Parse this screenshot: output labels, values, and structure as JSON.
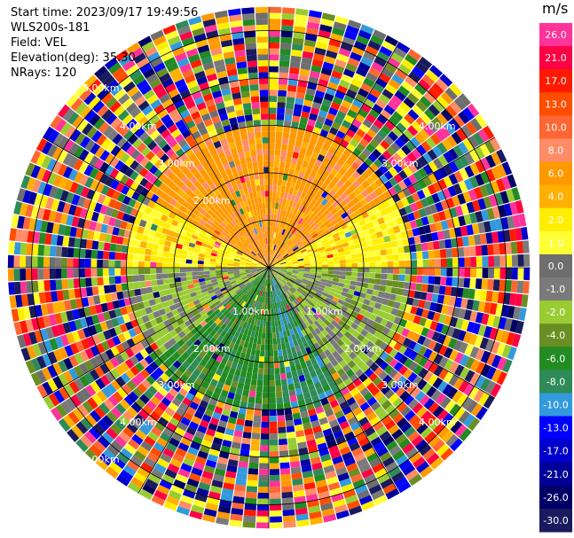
{
  "info": {
    "start_time": "Start time: 2023/09/17 19:49:56",
    "instrument": "WLS200s-181",
    "field": "Field: VEL",
    "elevation": "Elevation(deg): 35.30",
    "nrays": "NRays: 120"
  },
  "colorbar": {
    "unit": "m/s",
    "ticks": [
      "26.0",
      "21.0",
      "17.0",
      "13.0",
      "10.0",
      "8.0",
      "6.0",
      "4.0",
      "2.0",
      "1.0",
      "0.0",
      "-1.0",
      "-2.0",
      "-4.0",
      "-6.0",
      "-8.0",
      "-10.0",
      "-13.0",
      "-17.0",
      "-21.0",
      "-26.0",
      "-30.0"
    ],
    "colors": [
      "#ff3399",
      "#ff0044",
      "#ff1a00",
      "#ff4d00",
      "#ff6633",
      "#ff8c66",
      "#ff9900",
      "#ffb000",
      "#ffee00",
      "#ffff33",
      "#6e6e6e",
      "#7a7a7a",
      "#99cc33",
      "#6b8e23",
      "#228b22",
      "#2e8b57",
      "#3399dd",
      "#0000ff",
      "#0000cc",
      "#000099",
      "#000066",
      "#1a1a5e"
    ]
  },
  "range_labels": {
    "r1": "1.00km",
    "r2": "2.00km",
    "r3": "3.00km",
    "r4": "4.00km",
    "r5": "5.00km"
  },
  "chart_data": {
    "type": "heatmap",
    "projection": "polar-ppi",
    "field": "VEL",
    "n_rays": 120,
    "range_rings_km": [
      1,
      2,
      3,
      4,
      5
    ],
    "max_range_km": 5.5,
    "sectors": [
      {
        "azimuth_from": 300,
        "azimuth_to": 60,
        "inner_km": 0,
        "outer_km": 3.0,
        "velocity_ms": 6.0
      },
      {
        "azimuth_from": 60,
        "azimuth_to": 90,
        "inner_km": 0,
        "outer_km": 3.0,
        "velocity_ms": 2.0
      },
      {
        "azimuth_from": 270,
        "azimuth_to": 300,
        "inner_km": 0,
        "outer_km": 3.0,
        "velocity_ms": 2.0
      },
      {
        "azimuth_from": 90,
        "azimuth_to": 150,
        "inner_km": 0,
        "outer_km": 3.0,
        "velocity_ms": -2.0
      },
      {
        "azimuth_from": 150,
        "azimuth_to": 175,
        "inner_km": 0,
        "outer_km": 3.0,
        "velocity_ms": -8.0
      },
      {
        "azimuth_from": 175,
        "azimuth_to": 230,
        "inner_km": 0,
        "outer_km": 3.0,
        "velocity_ms": -6.0
      },
      {
        "azimuth_from": 230,
        "azimuth_to": 270,
        "inner_km": 0,
        "outer_km": 3.0,
        "velocity_ms": -2.0
      }
    ],
    "noise_beyond_km": 3.0
  }
}
